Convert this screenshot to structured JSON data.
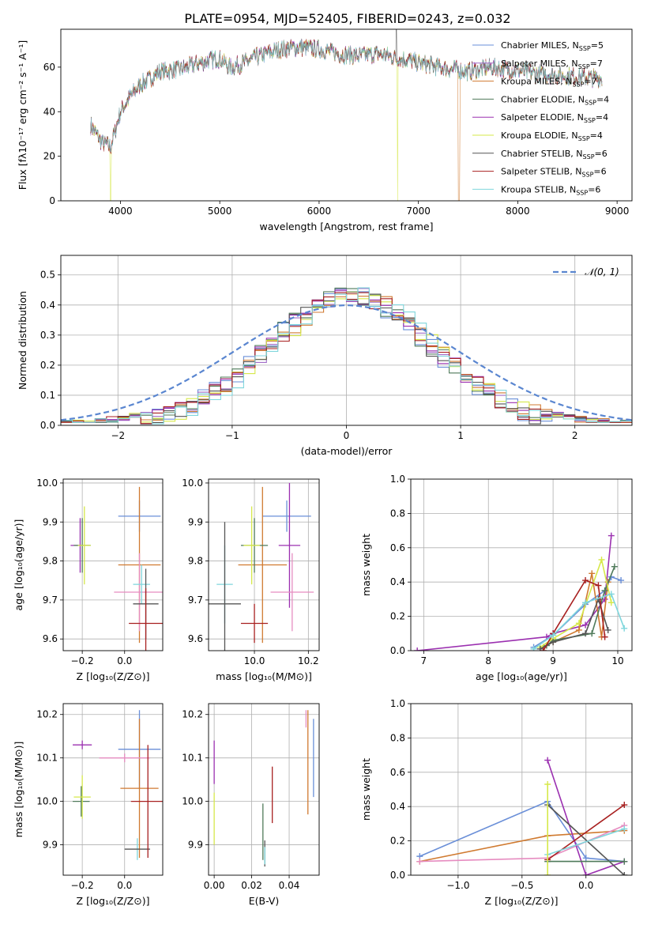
{
  "figure_title": "PLATE=0954, MJD=52405, FIBERID=0243, z=0.032",
  "chart_data": [
    {
      "id": "spectrum",
      "type": "line",
      "xlabel": "wavelength [Angstrom, rest frame]",
      "ylabel": "Flux [fλ10⁻¹⁷ erg cm⁻² s⁻¹ A⁻¹]",
      "xlim": [
        3400,
        9150
      ],
      "ylim": [
        0,
        77
      ],
      "xticks": [
        4000,
        5000,
        6000,
        7000,
        8000,
        9000
      ],
      "yticks": [
        0,
        20,
        40,
        60
      ],
      "grid": false,
      "legend": "upper right",
      "legend_entries": [
        {
          "label": "Chabrier MILES, N",
          "sub": "SSP",
          "suffix": "=5",
          "color": "#6a8fd8"
        },
        {
          "label": "Salpeter MILES, N",
          "sub": "SSP",
          "suffix": "=7",
          "color": "#a06cc8"
        },
        {
          "label": "Kroupa MILES, N",
          "sub": "SSP",
          "suffix": "=7",
          "color": "#d07a30"
        },
        {
          "label": "Chabrier ELODIE, N",
          "sub": "SSP",
          "suffix": "=4",
          "color": "#4f7a5a"
        },
        {
          "label": "Salpeter ELODIE, N",
          "sub": "SSP",
          "suffix": "=4",
          "color": "#9b30b0"
        },
        {
          "label": "Kroupa ELODIE, N",
          "sub": "SSP",
          "suffix": "=4",
          "color": "#d6e84a"
        },
        {
          "label": "Chabrier STELIB, N",
          "sub": "SSP",
          "suffix": "=6",
          "color": "#555555"
        },
        {
          "label": "Salpeter STELIB, N",
          "sub": "SSP",
          "suffix": "=6",
          "color": "#a82020"
        },
        {
          "label": "Kroupa STELIB, N",
          "sub": "SSP",
          "suffix": "=6",
          "color": "#7fd6dc"
        }
      ],
      "continuum": [
        [
          3700,
          34
        ],
        [
          3800,
          27
        ],
        [
          3900,
          24
        ],
        [
          4000,
          40
        ],
        [
          4100,
          47
        ],
        [
          4200,
          52
        ],
        [
          4400,
          58
        ],
        [
          4600,
          59
        ],
        [
          4800,
          62
        ],
        [
          5000,
          64
        ],
        [
          5100,
          60
        ],
        [
          5200,
          61
        ],
        [
          5400,
          65
        ],
        [
          5600,
          68
        ],
        [
          5800,
          69
        ],
        [
          6000,
          68
        ],
        [
          6200,
          66
        ],
        [
          6400,
          65
        ],
        [
          6600,
          66
        ],
        [
          6800,
          64
        ],
        [
          7000,
          62
        ],
        [
          7200,
          60
        ],
        [
          7500,
          58
        ],
        [
          7700,
          60
        ],
        [
          7900,
          59
        ],
        [
          8200,
          57
        ],
        [
          8500,
          56
        ],
        [
          8800,
          55
        ]
      ]
    },
    {
      "id": "residuals",
      "type": "bar",
      "xlabel": "(data-model)/error",
      "ylabel": "Normed distribution",
      "xlim": [
        -2.5,
        2.5
      ],
      "ylim": [
        0,
        0.565
      ],
      "xticks": [
        -2,
        -1,
        0,
        1,
        2
      ],
      "xtick_labels": [
        "−2",
        "−1",
        "0",
        "1",
        "2"
      ],
      "yticks": [
        0.0,
        0.1,
        0.2,
        0.3,
        0.4,
        0.5
      ],
      "ytick_labels": [
        "0.0",
        "0.1",
        "0.2",
        "0.3",
        "0.4",
        "0.5"
      ],
      "grid": true,
      "legend": "upper right",
      "legend_label": "𝒩(0, 1)",
      "gaussian": {
        "mu": 0,
        "sigma": 1,
        "color": "#5a86d0"
      }
    },
    {
      "id": "age-vs-Z",
      "type": "scatter",
      "xlabel": "Z [log₁₀(Z/Z⊙)]",
      "ylabel": "age  [log₁₀(age/yr)]",
      "xlim": [
        -0.29,
        0.18
      ],
      "ylim": [
        9.57,
        10.01
      ],
      "xticks": [
        -0.2,
        0.0
      ],
      "xtick_labels": [
        "−0.2",
        "0.0"
      ],
      "yticks": [
        9.6,
        9.7,
        9.8,
        9.9,
        10.0
      ],
      "ytick_labels": [
        "9.6",
        "9.7",
        "9.8",
        "9.9",
        "10.0"
      ],
      "grid": true,
      "points": [
        {
          "x": 0.07,
          "y": 9.915,
          "xerr": 0.1,
          "yerr": 0.04,
          "color": "#6a8fd8"
        },
        {
          "x": 0.07,
          "y": 9.79,
          "xerr": 0.1,
          "yerr": 0.2,
          "color": "#d07a30"
        },
        {
          "x": -0.21,
          "y": 9.84,
          "xerr": 0.045,
          "yerr": 0.07,
          "color": "#9b30b0"
        },
        {
          "x": -0.2,
          "y": 9.84,
          "xerr": 0.04,
          "yerr": 0.07,
          "color": "#4f7a5a"
        },
        {
          "x": -0.19,
          "y": 9.84,
          "xerr": 0.03,
          "yerr": 0.1,
          "color": "#d6e84a"
        },
        {
          "x": 0.07,
          "y": 9.72,
          "xerr": 0.12,
          "yerr": 0.1,
          "color": "#e68cc0"
        },
        {
          "x": 0.08,
          "y": 9.74,
          "xerr": 0.04,
          "yerr": 0.05,
          "color": "#7fd6dc"
        },
        {
          "x": 0.1,
          "y": 9.69,
          "xerr": 0.06,
          "yerr": 0.09,
          "color": "#555555"
        },
        {
          "x": 0.1,
          "y": 9.64,
          "xerr": 0.08,
          "yerr": 0.09,
          "color": "#a82020"
        }
      ]
    },
    {
      "id": "age-vs-mass",
      "type": "scatter",
      "xlabel": "mass [log₁₀(M/M⊙)]",
      "ylabel": "",
      "xlim": [
        9.83,
        10.24
      ],
      "ylim": [
        9.57,
        10.01
      ],
      "xticks": [
        10.0,
        10.2
      ],
      "xtick_labels": [
        "10.0",
        "10.2"
      ],
      "yticks": [
        9.6,
        9.7,
        9.8,
        9.9,
        10.0
      ],
      "ytick_labels": [
        "9.6",
        "9.7",
        "9.8",
        "9.9",
        "10.0"
      ],
      "grid": true,
      "points": [
        {
          "x": 10.12,
          "y": 9.915,
          "xerr": 0.09,
          "yerr": 0.04,
          "color": "#6a8fd8"
        },
        {
          "x": 10.03,
          "y": 9.79,
          "xerr": 0.09,
          "yerr": 0.2,
          "color": "#d07a30"
        },
        {
          "x": 10.13,
          "y": 9.84,
          "xerr": 0.04,
          "yerr": 0.16,
          "color": "#9b30b0"
        },
        {
          "x": 10.0,
          "y": 9.84,
          "xerr": 0.05,
          "yerr": 0.07,
          "color": "#4f7a5a"
        },
        {
          "x": 9.99,
          "y": 9.84,
          "xerr": 0.03,
          "yerr": 0.1,
          "color": "#d6e84a"
        },
        {
          "x": 10.14,
          "y": 9.72,
          "xerr": 0.08,
          "yerr": 0.1,
          "color": "#e68cc0"
        },
        {
          "x": 9.89,
          "y": 9.74,
          "xerr": 0.03,
          "yerr": 0.1,
          "color": "#7fd6dc"
        },
        {
          "x": 9.89,
          "y": 9.69,
          "xerr": 0.06,
          "yerr": 0.21,
          "color": "#555555"
        },
        {
          "x": 10.0,
          "y": 9.64,
          "xerr": 0.05,
          "yerr": 0.05,
          "color": "#a82020"
        }
      ]
    },
    {
      "id": "weight-vs-age",
      "type": "line",
      "xlabel": "age  [log₁₀(age/yr)]",
      "ylabel": "mass weight",
      "xlim": [
        6.8,
        10.22
      ],
      "ylim": [
        0,
        1.0
      ],
      "xticks": [
        7,
        8,
        9,
        10
      ],
      "xtick_labels": [
        "7",
        "8",
        "9",
        "10"
      ],
      "yticks": [
        0.0,
        0.2,
        0.4,
        0.6,
        0.8,
        1.0
      ],
      "ytick_labels": [
        "0.0",
        "0.2",
        "0.4",
        "0.6",
        "0.8",
        "1.0"
      ],
      "grid": true,
      "series": [
        {
          "color": "#9b30b0",
          "x": [
            6.9,
            8.9,
            9.0,
            9.5,
            9.8,
            9.9
          ],
          "y": [
            0.0,
            0.08,
            0.1,
            0.15,
            0.3,
            0.67
          ]
        },
        {
          "color": "#6a8fd8",
          "x": [
            8.7,
            9.0,
            9.5,
            9.8,
            9.9,
            10.05
          ],
          "y": [
            0.02,
            0.09,
            0.27,
            0.35,
            0.43,
            0.41
          ]
        },
        {
          "color": "#d07a30",
          "x": [
            8.85,
            9.0,
            9.4,
            9.6,
            9.75,
            9.85
          ],
          "y": [
            0.02,
            0.05,
            0.12,
            0.45,
            0.08,
            0.4
          ]
        },
        {
          "color": "#4f7a5a",
          "x": [
            8.9,
            9.0,
            9.6,
            9.8,
            9.95
          ],
          "y": [
            0.03,
            0.06,
            0.1,
            0.35,
            0.49
          ]
        },
        {
          "color": "#d6e84a",
          "x": [
            8.8,
            9.0,
            9.4,
            9.75,
            9.9
          ],
          "y": [
            0.02,
            0.07,
            0.16,
            0.53,
            0.28
          ]
        },
        {
          "color": "#555555",
          "x": [
            8.8,
            9.0,
            9.5,
            9.7,
            9.85
          ],
          "y": [
            0.01,
            0.05,
            0.1,
            0.3,
            0.12
          ]
        },
        {
          "color": "#a82020",
          "x": [
            8.85,
            9.0,
            9.5,
            9.7,
            9.8
          ],
          "y": [
            0.0,
            0.1,
            0.41,
            0.38,
            0.08
          ]
        },
        {
          "color": "#7fd6dc",
          "x": [
            8.7,
            9.0,
            9.5,
            9.9,
            10.1
          ],
          "y": [
            0.01,
            0.09,
            0.28,
            0.33,
            0.13
          ]
        }
      ]
    },
    {
      "id": "mass-vs-Z",
      "type": "scatter",
      "xlabel": "Z [log₁₀(Z/Z⊙)]",
      "ylabel": "mass [log₁₀(M/M⊙)]",
      "xlim": [
        -0.29,
        0.18
      ],
      "ylim": [
        9.83,
        10.225
      ],
      "xticks": [
        -0.2,
        0.0
      ],
      "xtick_labels": [
        "−0.2",
        "0.0"
      ],
      "yticks": [
        9.9,
        10.0,
        10.1,
        10.2
      ],
      "ytick_labels": [
        "9.9",
        "10.0",
        "10.1",
        "10.2"
      ],
      "grid": true,
      "points": [
        {
          "x": 0.07,
          "y": 10.12,
          "xerr": 0.1,
          "yerr": 0.09,
          "color": "#6a8fd8"
        },
        {
          "x": 0.07,
          "y": 10.03,
          "xerr": 0.09,
          "yerr": 0.16,
          "color": "#d07a30"
        },
        {
          "x": -0.2,
          "y": 10.13,
          "xerr": 0.045,
          "yerr": 0.01,
          "color": "#9b30b0"
        },
        {
          "x": -0.205,
          "y": 10.0,
          "xerr": 0.04,
          "yerr": 0.035,
          "color": "#4f7a5a"
        },
        {
          "x": -0.2,
          "y": 10.01,
          "xerr": 0.04,
          "yerr": 0.05,
          "color": "#d6e84a"
        },
        {
          "x": 0.0,
          "y": 10.1,
          "xerr": 0.12,
          "yerr": 0.01,
          "color": "#e68cc0"
        },
        {
          "x": 0.06,
          "y": 9.89,
          "xerr": 0.0,
          "yerr": 0.025,
          "color": "#7fd6dc"
        },
        {
          "x": 0.06,
          "y": 9.89,
          "xerr": 0.06,
          "yerr": 0.0,
          "color": "#555555"
        },
        {
          "x": 0.11,
          "y": 10.0,
          "xerr": 0.08,
          "yerr": 0.13,
          "color": "#a82020"
        }
      ]
    },
    {
      "id": "mass-vs-EBV",
      "type": "scatter",
      "xlabel": "E(B-V)",
      "ylabel": "",
      "xlim": [
        -0.003,
        0.056
      ],
      "ylim": [
        9.83,
        10.225
      ],
      "xticks": [
        0.0,
        0.02,
        0.04
      ],
      "xtick_labels": [
        "0.00",
        "0.02",
        "0.04"
      ],
      "yticks": [
        9.9,
        10.0,
        10.1,
        10.2
      ],
      "ytick_labels": [
        "9.9",
        "10.0",
        "10.1",
        "10.2"
      ],
      "grid": true,
      "points": [
        {
          "x": 0.0,
          "y": 10.09,
          "xerr": 0.0,
          "yerr": 0.05,
          "color": "#9b30b0"
        },
        {
          "x": 0.0,
          "y": 9.96,
          "xerr": 0.0,
          "yerr": 0.06,
          "color": "#d6e84a"
        },
        {
          "x": 0.027,
          "y": 9.88,
          "xerr": 0.0,
          "yerr": 0.03,
          "color": "#555555"
        },
        {
          "x": 0.026,
          "y": 9.93,
          "xerr": 0.0,
          "yerr": 0.065,
          "color": "#4f7a5a"
        },
        {
          "x": 0.027,
          "y": 9.875,
          "xerr": 0.0,
          "yerr": 0.02,
          "color": "#7fd6dc"
        },
        {
          "x": 0.031,
          "y": 10.015,
          "xerr": 0.0,
          "yerr": 0.065,
          "color": "#a82020"
        },
        {
          "x": 0.05,
          "y": 10.09,
          "xerr": 0.0,
          "yerr": 0.12,
          "color": "#d07a30"
        },
        {
          "x": 0.053,
          "y": 10.1,
          "xerr": 0.0,
          "yerr": 0.09,
          "color": "#6a8fd8"
        },
        {
          "x": 0.049,
          "y": 10.19,
          "xerr": 0.0,
          "yerr": 0.02,
          "color": "#e68cc0"
        }
      ]
    },
    {
      "id": "weight-vs-Z",
      "type": "line",
      "xlabel": "Z [log₁₀(Z/Z⊙)]",
      "ylabel": "mass weight",
      "xlim": [
        -1.37,
        0.36
      ],
      "ylim": [
        0,
        1.0
      ],
      "xticks": [
        -1.0,
        -0.5,
        0.0
      ],
      "xtick_labels": [
        "−1.0",
        "−0.5",
        "0.0"
      ],
      "yticks": [
        0.0,
        0.2,
        0.4,
        0.6,
        0.8,
        1.0
      ],
      "ytick_labels": [
        "0.0",
        "0.2",
        "0.4",
        "0.6",
        "0.8",
        "1.0"
      ],
      "grid": true,
      "series": [
        {
          "color": "#6a8fd8",
          "x": [
            -1.3,
            -0.3,
            0.0,
            0.3
          ],
          "y": [
            0.11,
            0.43,
            0.1,
            0.08
          ]
        },
        {
          "color": "#d07a30",
          "x": [
            -1.3,
            -0.3,
            0.3
          ],
          "y": [
            0.08,
            0.23,
            0.26
          ]
        },
        {
          "color": "#e68cc0",
          "x": [
            -1.3,
            -0.3,
            0.3
          ],
          "y": [
            0.08,
            0.1,
            0.29
          ]
        },
        {
          "color": "#9b30b0",
          "x": [
            -0.3,
            0.0,
            0.3
          ],
          "y": [
            0.67,
            0.0,
            0.08
          ]
        },
        {
          "color": "#555555",
          "x": [
            -0.3,
            0.3
          ],
          "y": [
            0.41,
            0.0
          ]
        },
        {
          "color": "#a82020",
          "x": [
            -0.3,
            0.3
          ],
          "y": [
            0.09,
            0.41
          ]
        },
        {
          "color": "#4f7a5a",
          "x": [
            -0.3,
            0.3
          ],
          "y": [
            0.08,
            0.08
          ]
        },
        {
          "color": "#7fd6dc",
          "x": [
            -0.3,
            0.3
          ],
          "y": [
            0.12,
            0.27
          ]
        },
        {
          "color": "#d6e84a",
          "x": [
            -0.3,
            -0.3
          ],
          "y": [
            0.0,
            0.53
          ]
        }
      ]
    }
  ]
}
